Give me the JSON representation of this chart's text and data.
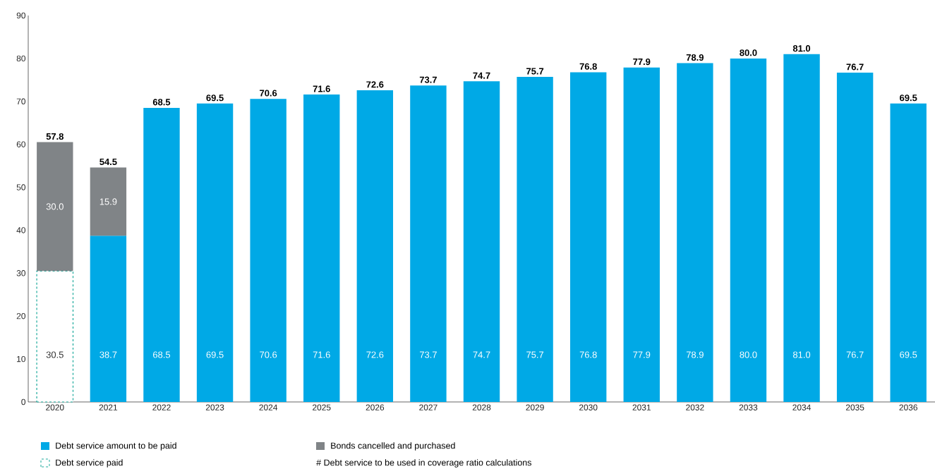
{
  "chart_data": {
    "type": "bar",
    "stacked": true,
    "categories": [
      "2020",
      "2021",
      "2022",
      "2023",
      "2024",
      "2025",
      "2026",
      "2027",
      "2028",
      "2029",
      "2030",
      "2031",
      "2032",
      "2033",
      "2034",
      "2035",
      "2036"
    ],
    "series": [
      {
        "name": "Debt service paid",
        "color": "#1aa99b",
        "line_style": "dashed",
        "values": [
          30.5,
          null,
          null,
          null,
          null,
          null,
          null,
          null,
          null,
          null,
          null,
          null,
          null,
          null,
          null,
          null,
          null
        ],
        "value_labels": [
          "30.5",
          null,
          null,
          null,
          null,
          null,
          null,
          null,
          null,
          null,
          null,
          null,
          null,
          null,
          null,
          null,
          null
        ]
      },
      {
        "name": "Debt service amount to be paid",
        "color": "#00a9e6",
        "values": [
          null,
          38.7,
          68.5,
          69.5,
          70.6,
          71.6,
          72.6,
          73.7,
          74.7,
          75.7,
          76.8,
          77.9,
          78.9,
          80.0,
          81.0,
          76.7,
          69.5
        ],
        "value_labels": [
          null,
          "38.7",
          "68.5",
          "69.5",
          "70.6",
          "71.6",
          "72.6",
          "73.7",
          "74.7",
          "75.7",
          "76.8",
          "77.9",
          "78.9",
          "80.0",
          "81.0",
          "76.7",
          "69.5"
        ]
      },
      {
        "name": "Bonds cancelled and purchased",
        "color": "#808487",
        "values": [
          30.0,
          15.9,
          null,
          null,
          null,
          null,
          null,
          null,
          null,
          null,
          null,
          null,
          null,
          null,
          null,
          null,
          null
        ],
        "value_labels": [
          "30.0",
          "15.9",
          null,
          null,
          null,
          null,
          null,
          null,
          null,
          null,
          null,
          null,
          null,
          null,
          null,
          null,
          null
        ]
      }
    ],
    "ylim": [
      0,
      90
    ],
    "yticks": [
      0,
      10,
      20,
      30,
      40,
      50,
      60,
      70,
      80,
      90
    ],
    "legend": "bottom left",
    "annotations": [
      "# Debt service to be used in coverage ratio calculations",
      {
        "text": "57.8",
        "x": "2020",
        "y": 60.5
      },
      {
        "text": "54.5",
        "x": "2021",
        "y": 54.6
      },
      {
        "text": "68.5",
        "x": "2022",
        "y": 68.5
      },
      {
        "text": "69.5",
        "x": "2023",
        "y": 69.5
      },
      {
        "text": "70.6",
        "x": "2024",
        "y": 70.6
      },
      {
        "text": "71.6",
        "x": "2025",
        "y": 71.6
      },
      {
        "text": "72.6",
        "x": "2026",
        "y": 72.6
      },
      {
        "text": "73.7",
        "x": "2027",
        "y": 73.7
      },
      {
        "text": "74.7",
        "x": "2028",
        "y": 74.7
      },
      {
        "text": "75.7",
        "x": "2029",
        "y": 75.7
      },
      {
        "text": "76.8",
        "x": "2030",
        "y": 76.8
      },
      {
        "text": "77.9",
        "x": "2031",
        "y": 77.9
      },
      {
        "text": "78.9",
        "x": "2032",
        "y": 78.9
      },
      {
        "text": "80.0",
        "x": "2033",
        "y": 80.0
      },
      {
        "text": "81.0",
        "x": "2034",
        "y": 81.0
      },
      {
        "text": "76.7",
        "x": "2035",
        "y": 76.7
      },
      {
        "text": "69.5",
        "x": "2036",
        "y": 69.5
      }
    ]
  }
}
